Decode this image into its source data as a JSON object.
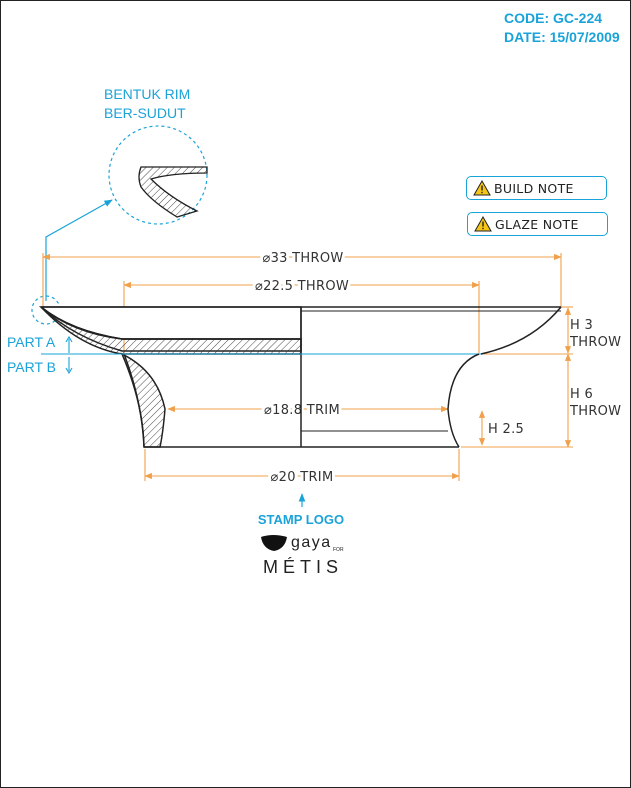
{
  "header": {
    "code": "CODE: GC-224",
    "date": "DATE: 15/07/2009"
  },
  "callout": {
    "line1": "BENTUK RIM",
    "line2": "BER-SUDUT"
  },
  "notes": [
    {
      "label": "BUILD NOTE",
      "icon": "warning-icon"
    },
    {
      "label": "GLAZE NOTE",
      "icon": "warning-icon"
    }
  ],
  "dimensions": {
    "d33": "⌀33 THROW",
    "d22_5": "⌀22.5 THROW",
    "d18_8": "⌀18.8 TRIM",
    "d20": "⌀20 TRIM",
    "h3_a": "H 3",
    "h3_b": "THROW",
    "h6_a": "H 6",
    "h6_b": "THROW",
    "h2_5": "H 2.5"
  },
  "parts": {
    "a": "PART A",
    "b": "PART B"
  },
  "stamp": {
    "label": "STAMP LOGO",
    "brand": "gaya",
    "for": "FOR",
    "sub": "MÉTIS"
  },
  "colors": {
    "accent": "#1aa3d9",
    "dimension": "#f0a04b",
    "line": "#222222"
  }
}
